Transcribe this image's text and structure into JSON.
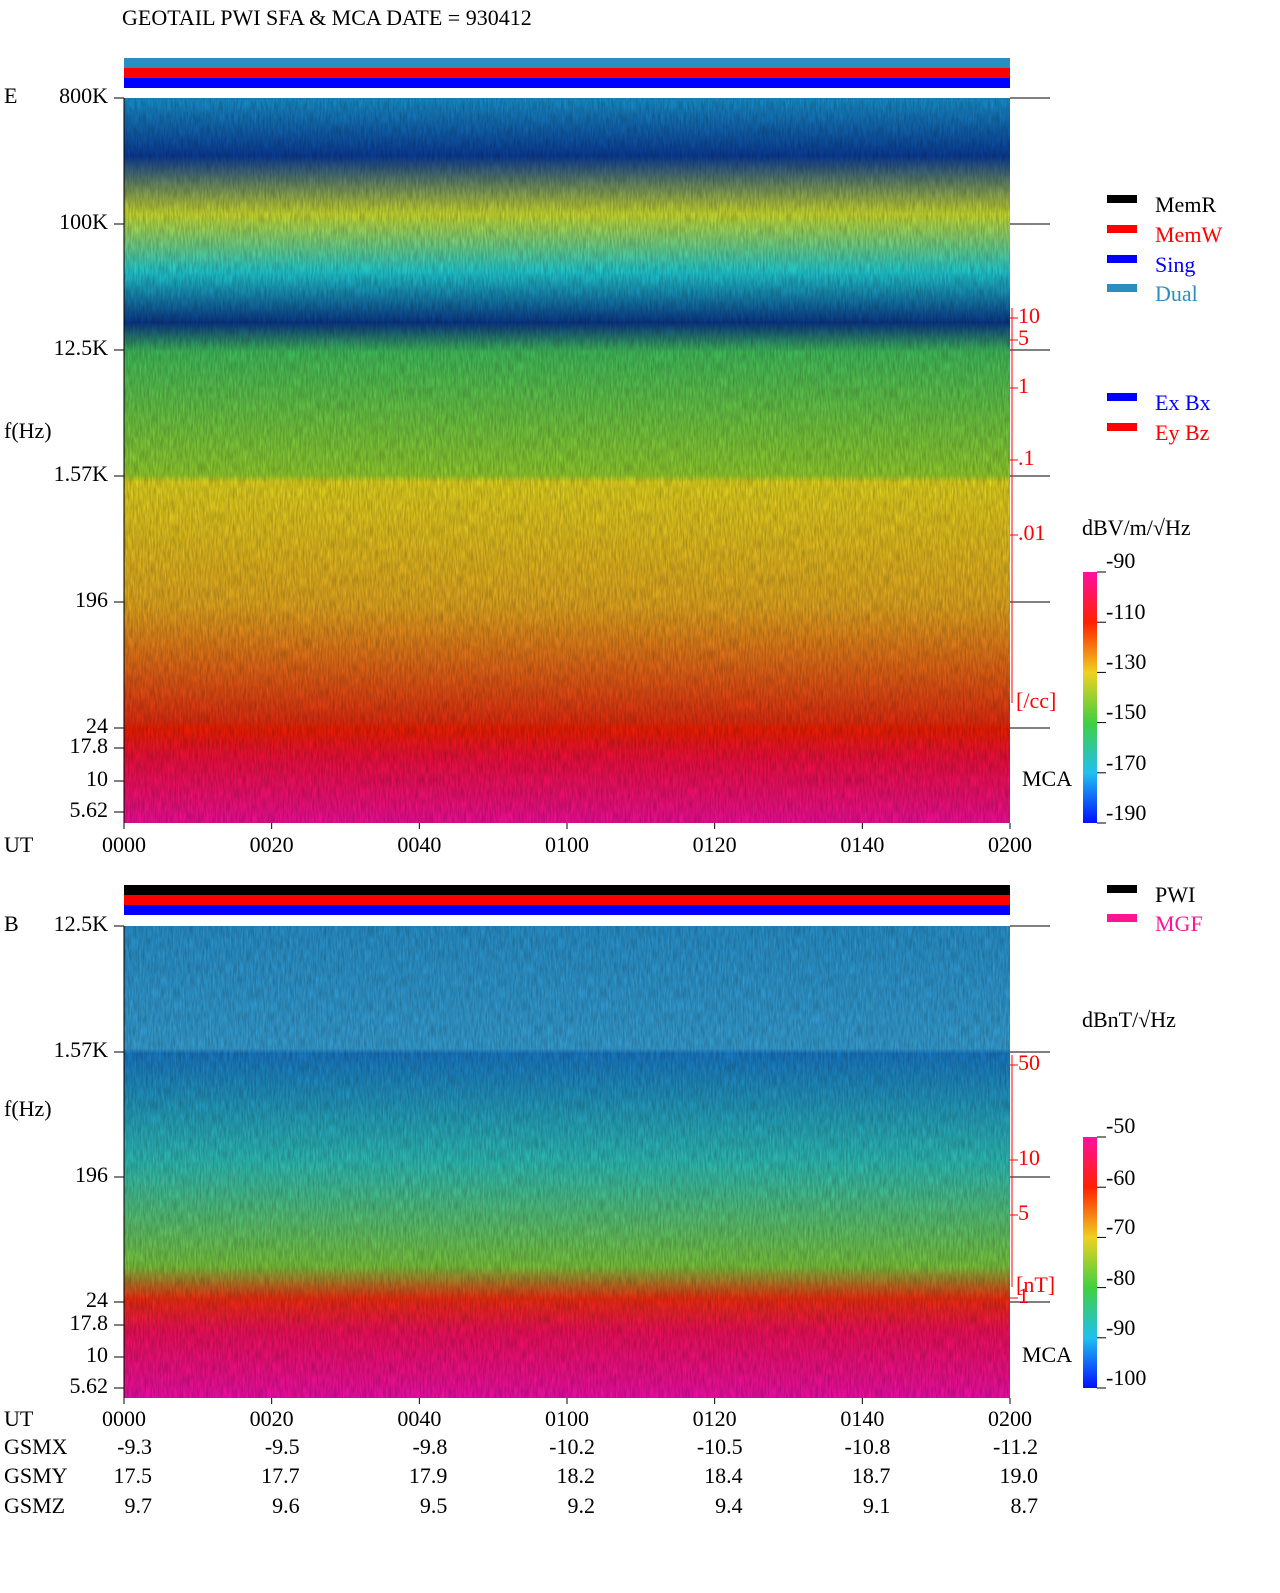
{
  "title": "GEOTAIL  PWI SFA & MCA   DATE = 930412",
  "panels": [
    {
      "label": "E",
      "mode_bars": [
        "#2a8fc0",
        "#ff0000",
        "#0000ff"
      ],
      "yticks": [
        "800K",
        "100K",
        "12.5K",
        "1.57K",
        "196",
        "24",
        "17.8",
        "10",
        "5.62"
      ],
      "y_axis_label": "f(Hz)",
      "x_axis_label": "UT",
      "xticks": [
        "0000",
        "0020",
        "0040",
        "0100",
        "0120",
        "0140",
        "0200"
      ],
      "right_ticks": [
        "10",
        "5",
        "1",
        ".1",
        ".01"
      ],
      "right_unit": "[/cc]",
      "mca": "MCA",
      "colorbar_title": "dBV/m/√Hz",
      "colorbar_ticks": [
        "-90",
        "-110",
        "-130",
        "-150",
        "-170",
        "-190"
      ]
    },
    {
      "label": "B",
      "mode_bars": [
        "#000000",
        "#ff0000",
        "#0000ff"
      ],
      "yticks": [
        "12.5K",
        "1.57K",
        "196",
        "24",
        "17.8",
        "10",
        "5.62"
      ],
      "y_axis_label": "f(Hz)",
      "x_axis_label": "UT",
      "xticks": [
        "0000",
        "0020",
        "0040",
        "0100",
        "0120",
        "0140",
        "0200"
      ],
      "right_ticks": [
        "50",
        "10",
        "5",
        "1"
      ],
      "right_unit": "[nT]",
      "mca": "MCA",
      "colorbar_title": "dBnT/√Hz",
      "colorbar_ticks": [
        "-50",
        "-60",
        "-70",
        "-80",
        "-90",
        "-100"
      ]
    }
  ],
  "legend": {
    "mode": [
      {
        "label": "MemR",
        "color": "#000000"
      },
      {
        "label": "MemW",
        "color": "#ff0000"
      },
      {
        "label": "Sing",
        "color": "#0000ff"
      },
      {
        "label": "Dual",
        "color": "#2a8fc0"
      }
    ],
    "components": [
      {
        "label": "Ex Bx",
        "color": "#0000ff"
      },
      {
        "label": "Ey Bz",
        "color": "#ff0000"
      }
    ],
    "instruments": [
      {
        "label": "PWI",
        "color": "#000000"
      },
      {
        "label": "MGF",
        "color": "#ff1493"
      }
    ]
  },
  "orbit": [
    {
      "label": "GSMX",
      "values": [
        "-9.3",
        "-9.5",
        "-9.8",
        "-10.2",
        "-10.5",
        "-10.8",
        "-11.2"
      ]
    },
    {
      "label": "GSMY",
      "values": [
        "17.5",
        "17.7",
        "17.9",
        "18.2",
        "18.4",
        "18.7",
        "19.0"
      ]
    },
    {
      "label": "GSMZ",
      "values": [
        "9.7",
        "9.6",
        "9.5",
        "9.2",
        "9.4",
        "9.1",
        "8.7"
      ]
    }
  ]
}
